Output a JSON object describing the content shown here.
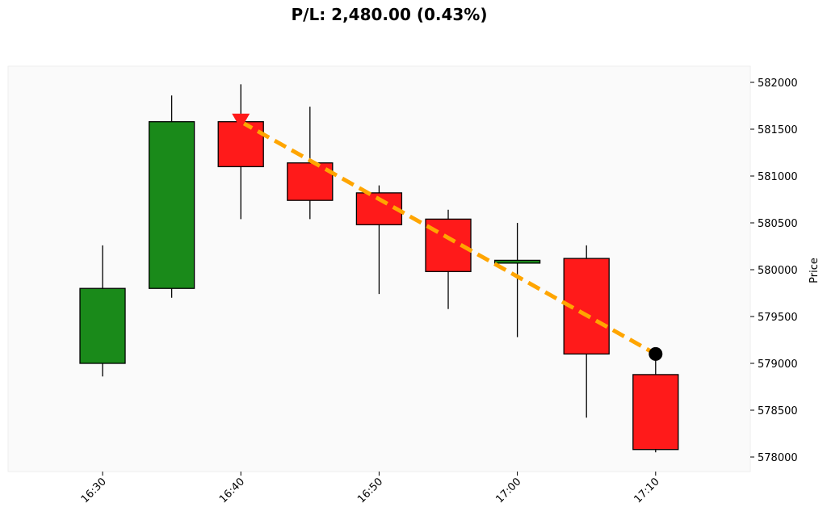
{
  "chart_data": {
    "type": "candlestick",
    "title": "P/L: 2,480.00 (0.43%)",
    "xlabel": "",
    "ylabel": "Price",
    "ylim": [
      577850,
      582200
    ],
    "y_ticks": [
      578000,
      578500,
      579000,
      579500,
      580000,
      580500,
      581000,
      581500,
      582000
    ],
    "x_ticks": [
      "16:30",
      "16:40",
      "16:50",
      "17:00",
      "17:10"
    ],
    "grid": false,
    "colors": {
      "up": "#1a8a1a",
      "down": "#ff1a1a",
      "trade_line": "#ffa500",
      "background": "#fafafa"
    },
    "candles": [
      {
        "time": "16:30",
        "open": 579000,
        "high": 580260,
        "low": 578860,
        "close": 579800
      },
      {
        "time": "16:35",
        "open": 579800,
        "high": 581860,
        "low": 579700,
        "close": 581580
      },
      {
        "time": "16:40",
        "open": 581580,
        "high": 581980,
        "low": 580540,
        "close": 581100
      },
      {
        "time": "16:45",
        "open": 581140,
        "high": 581740,
        "low": 580540,
        "close": 580740
      },
      {
        "time": "16:50",
        "open": 580820,
        "high": 580900,
        "low": 579740,
        "close": 580480
      },
      {
        "time": "16:55",
        "open": 580540,
        "high": 580640,
        "low": 579580,
        "close": 579980
      },
      {
        "time": "17:00",
        "open": 580070,
        "high": 580500,
        "low": 579280,
        "close": 580100
      },
      {
        "time": "17:05",
        "open": 580120,
        "high": 580260,
        "low": 578420,
        "close": 579100
      },
      {
        "time": "17:10",
        "open": 578880,
        "high": 579100,
        "low": 578050,
        "close": 578080
      }
    ],
    "trade": {
      "entry": {
        "time": "16:40",
        "price": 581580,
        "marker": "down-triangle-icon"
      },
      "exit": {
        "time": "17:10",
        "price": 579100,
        "marker": "circle-icon"
      }
    }
  }
}
